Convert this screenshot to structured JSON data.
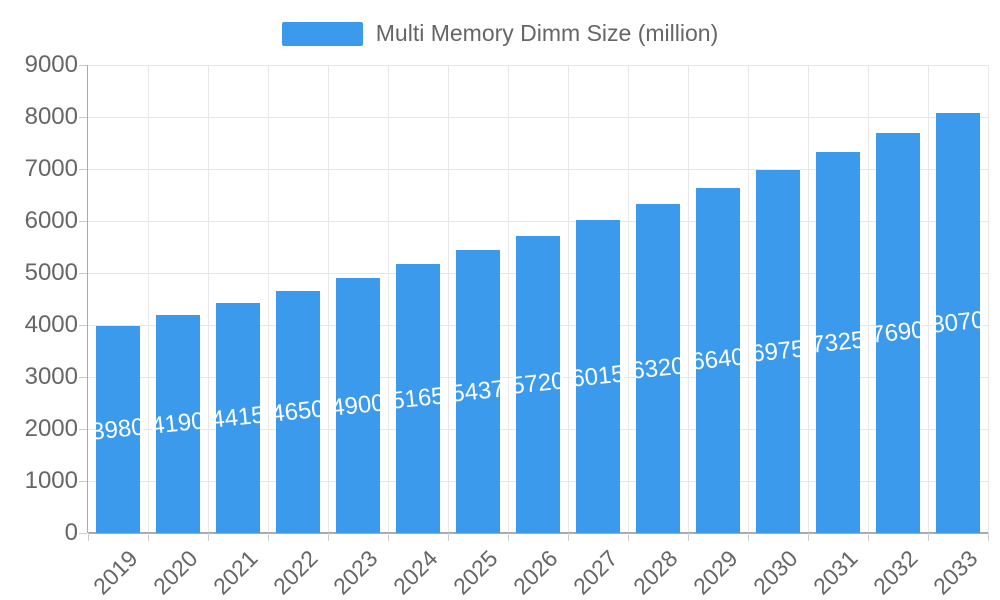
{
  "legend": {
    "label": "Multi Memory Dimm Size (million)"
  },
  "chart_data": {
    "type": "bar",
    "title": "",
    "legend_label": "Multi Memory Dimm Size (million)",
    "legend_position": "top-center",
    "categories": [
      "2019",
      "2020",
      "2021",
      "2022",
      "2023",
      "2024",
      "2025",
      "2026",
      "2027",
      "2028",
      "2029",
      "2030",
      "2031",
      "2032",
      "2033"
    ],
    "values": [
      3980,
      4190,
      4415,
      4650,
      4900,
      5165,
      5437,
      5720,
      6015,
      6320,
      6640,
      6975,
      7325,
      7690,
      8070
    ],
    "bar_labels": [
      "3980",
      "4190",
      "4415",
      "4650",
      "4900",
      "5165",
      "5437",
      "5720",
      "6015",
      "6320",
      "6640",
      "6975",
      "7325",
      "7690",
      "8070"
    ],
    "xlabel": "",
    "ylabel": "",
    "ylim": [
      0,
      9000
    ],
    "ytick_step": 1000,
    "ytick_labels": [
      "0",
      "1000",
      "2000",
      "3000",
      "4000",
      "5000",
      "6000",
      "7000",
      "8000",
      "9000"
    ],
    "grid": true
  },
  "colors": {
    "bar": "#3B9AEB",
    "axis_text": "#666666",
    "grid_line": "#E7E7E7",
    "axis_line": "#AAAAAA",
    "tick": "#CCCCCC",
    "bar_label_text": "#FFFFFF",
    "background": "#FFFFFF"
  }
}
